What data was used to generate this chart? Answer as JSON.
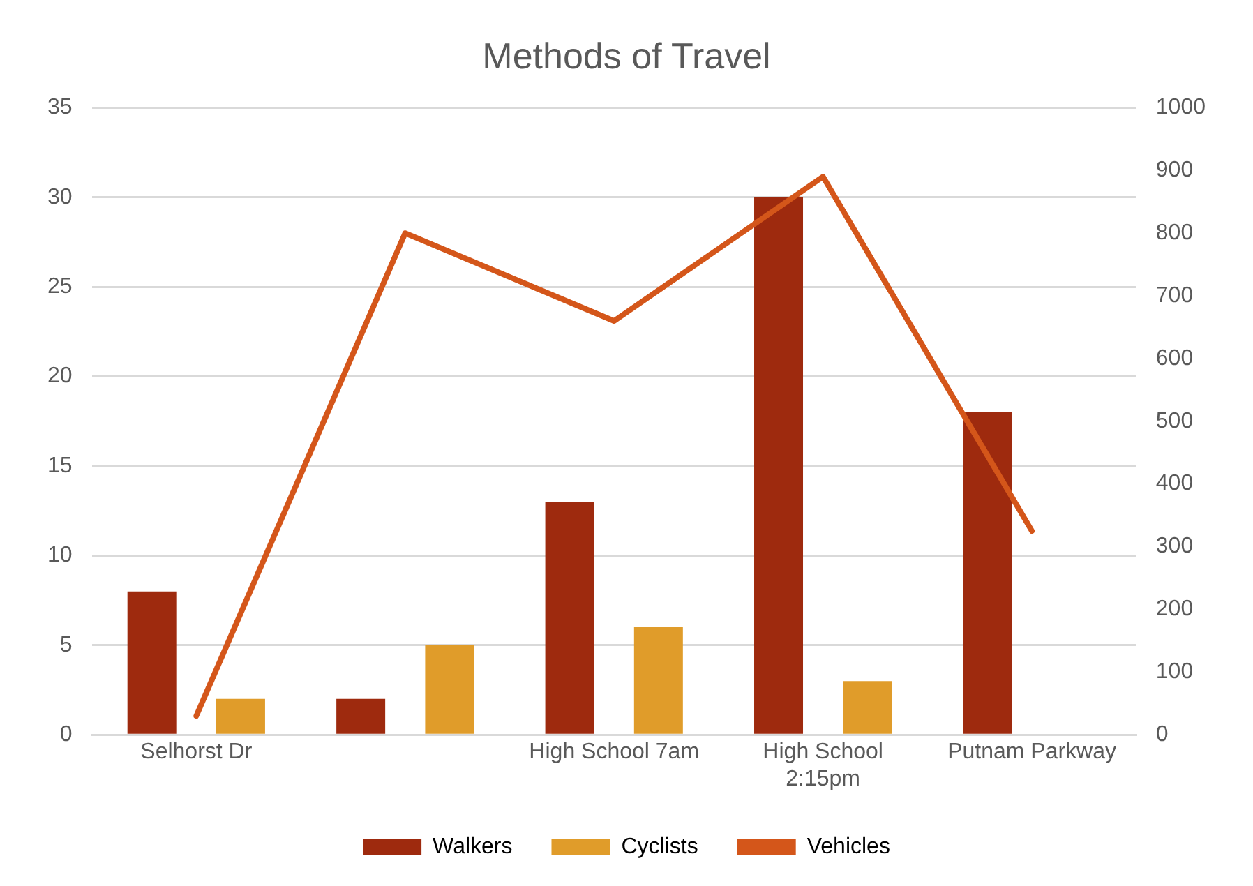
{
  "chart_data": {
    "type": "bar",
    "title": "Methods of Travel",
    "categories": [
      "Selhorst Dr",
      null,
      "High School 7am",
      "High School 2:15pm",
      "Putnam Parkway"
    ],
    "series": [
      {
        "name": "Walkers",
        "color": "#9e2a0e",
        "values": [
          8,
          2,
          13,
          30,
          18
        ]
      },
      {
        "name": "Cyclists",
        "color": "#e09c2a",
        "values": [
          2,
          5,
          6,
          3,
          null
        ]
      },
      {
        "name": "Vehicles",
        "color": "#d4561a",
        "type": "line",
        "axis": "y2",
        "values": [
          30,
          800,
          660,
          890,
          325
        ]
      }
    ],
    "ylim": [
      0,
      35
    ],
    "yticks": [
      0,
      5,
      10,
      15,
      20,
      25,
      30,
      35
    ],
    "y2lim": [
      0,
      1000
    ],
    "y2ticks": [
      0,
      100,
      200,
      300,
      400,
      500,
      600,
      700,
      800,
      900,
      1000
    ],
    "grid": "y",
    "legend": "bottom",
    "marker": "none"
  }
}
